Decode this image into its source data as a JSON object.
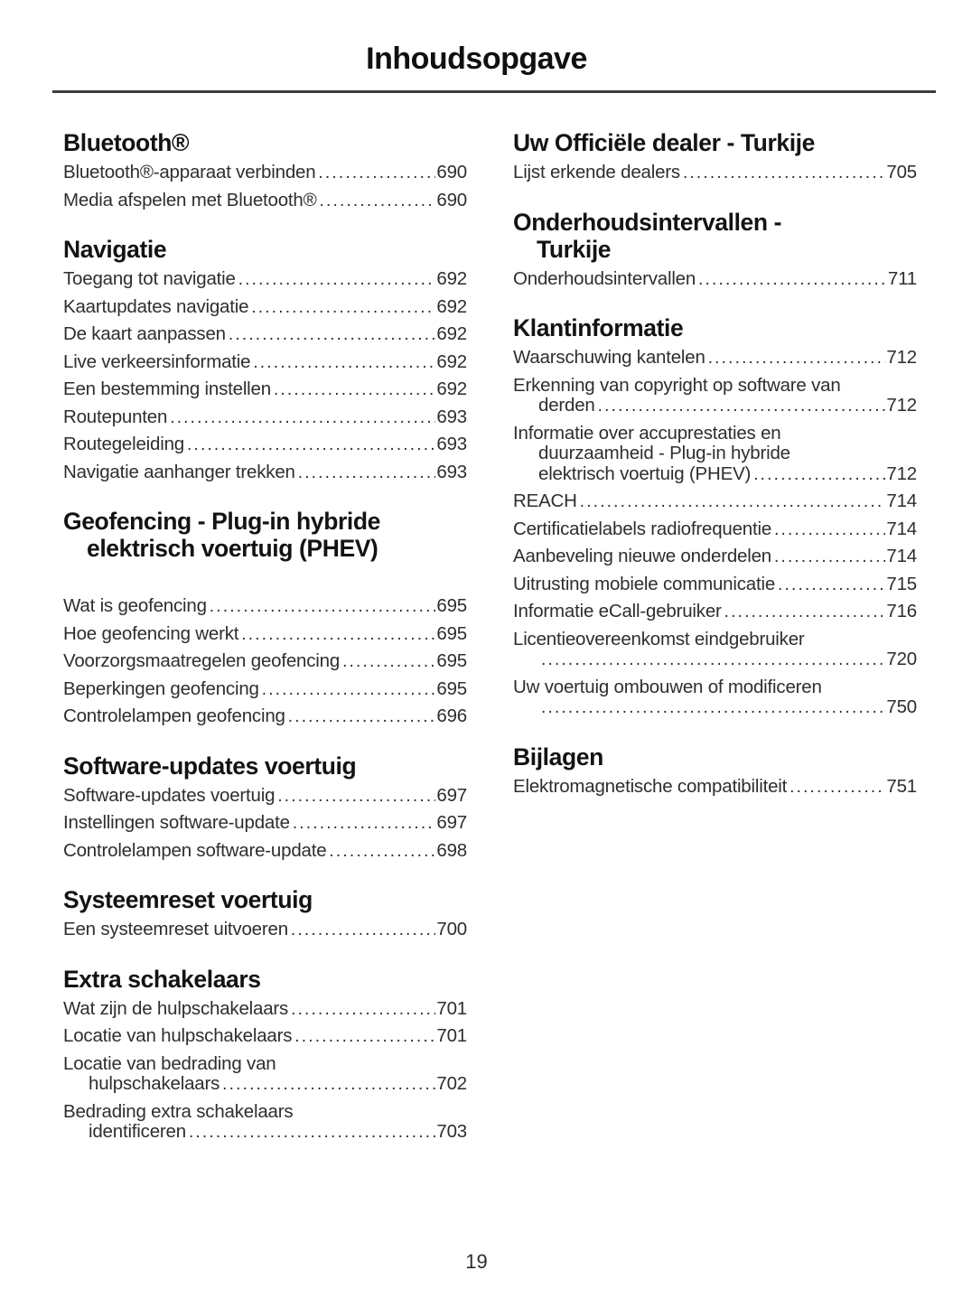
{
  "header": {
    "title": "Inhoudsopgave"
  },
  "footer": {
    "page_number": "19"
  },
  "columns": [
    {
      "name": "left",
      "sections": [
        {
          "heading": [
            "Bluetooth®"
          ],
          "entries": [
            {
              "lines": [
                "Bluetooth®-apparaat verbinden"
              ],
              "page": "690"
            },
            {
              "lines": [
                "Media afspelen met Bluetooth®"
              ],
              "page": "690"
            }
          ]
        },
        {
          "heading": [
            "Navigatie"
          ],
          "entries": [
            {
              "lines": [
                "Toegang tot navigatie"
              ],
              "page": "692"
            },
            {
              "lines": [
                "Kaartupdates navigatie"
              ],
              "page": "692"
            },
            {
              "lines": [
                "De kaart aanpassen"
              ],
              "page": "692"
            },
            {
              "lines": [
                "Live verkeersinformatie"
              ],
              "page": "692"
            },
            {
              "lines": [
                "Een bestemming instellen"
              ],
              "page": "692"
            },
            {
              "lines": [
                "Routepunten"
              ],
              "page": "693"
            },
            {
              "lines": [
                "Routegeleiding"
              ],
              "page": "693"
            },
            {
              "lines": [
                "Navigatie aanhanger trekken"
              ],
              "page": "693"
            }
          ]
        },
        {
          "heading": [
            "Geofencing - Plug-in hybride",
            "elektrisch voertuig (PHEV)"
          ],
          "extra_gap": true,
          "entries": [
            {
              "lines": [
                "Wat is geofencing"
              ],
              "page": "695"
            },
            {
              "lines": [
                "Hoe geofencing werkt"
              ],
              "page": "695"
            },
            {
              "lines": [
                "Voorzorgsmaatregelen geofencing"
              ],
              "page": "695"
            },
            {
              "lines": [
                "Beperkingen geofencing"
              ],
              "page": "695"
            },
            {
              "lines": [
                "Controlelampen geofencing"
              ],
              "page": "696"
            }
          ]
        },
        {
          "heading": [
            "Software-updates voertuig"
          ],
          "entries": [
            {
              "lines": [
                "Software-updates voertuig"
              ],
              "page": "697"
            },
            {
              "lines": [
                "Instellingen software-update"
              ],
              "page": "697"
            },
            {
              "lines": [
                "Controlelampen software-update"
              ],
              "page": "698"
            }
          ]
        },
        {
          "heading": [
            "Systeemreset voertuig"
          ],
          "entries": [
            {
              "lines": [
                "Een systeemreset uitvoeren"
              ],
              "page": "700"
            }
          ]
        },
        {
          "heading": [
            "Extra schakelaars"
          ],
          "entries": [
            {
              "lines": [
                "Wat zijn de hulpschakelaars"
              ],
              "page": "701"
            },
            {
              "lines": [
                "Locatie van hulpschakelaars"
              ],
              "page": "701"
            },
            {
              "lines": [
                "Locatie van bedrading van",
                "hulpschakelaars"
              ],
              "page": "702"
            },
            {
              "lines": [
                "Bedrading extra schakelaars",
                "identificeren"
              ],
              "page": "703"
            }
          ]
        }
      ]
    },
    {
      "name": "right",
      "sections": [
        {
          "heading": [
            "Uw Officiële dealer - Turkije"
          ],
          "entries": [
            {
              "lines": [
                "Lijst erkende dealers"
              ],
              "page": "705"
            }
          ]
        },
        {
          "heading": [
            "Onderhoudsintervallen -",
            "Turkije"
          ],
          "entries": [
            {
              "lines": [
                "Onderhoudsintervallen"
              ],
              "page": "711"
            }
          ]
        },
        {
          "heading": [
            "Klantinformatie"
          ],
          "entries": [
            {
              "lines": [
                "Waarschuwing kantelen"
              ],
              "page": "712"
            },
            {
              "lines": [
                "Erkenning van copyright op software van",
                "derden"
              ],
              "page": "712"
            },
            {
              "lines": [
                "Informatie over accuprestaties en",
                "duurzaamheid - Plug-in hybride",
                "elektrisch voertuig (PHEV)"
              ],
              "page": "712"
            },
            {
              "lines": [
                "REACH"
              ],
              "page": "714"
            },
            {
              "lines": [
                "Certificatielabels radiofrequentie"
              ],
              "page": "714"
            },
            {
              "lines": [
                "Aanbeveling nieuwe onderdelen"
              ],
              "page": "714"
            },
            {
              "lines": [
                "Uitrusting mobiele communicatie"
              ],
              "page": "715"
            },
            {
              "lines": [
                "Informatie eCall-gebruiker"
              ],
              "page": "716"
            },
            {
              "lines": [
                "Licentieovereenkomst eindgebruiker",
                ""
              ],
              "page": "720"
            },
            {
              "lines": [
                "Uw voertuig ombouwen of modificeren",
                ""
              ],
              "page": "750"
            }
          ]
        },
        {
          "heading": [
            "Bijlagen"
          ],
          "entries": [
            {
              "lines": [
                "Elektromagnetische compatibiliteit"
              ],
              "page": "751"
            }
          ]
        }
      ]
    }
  ]
}
